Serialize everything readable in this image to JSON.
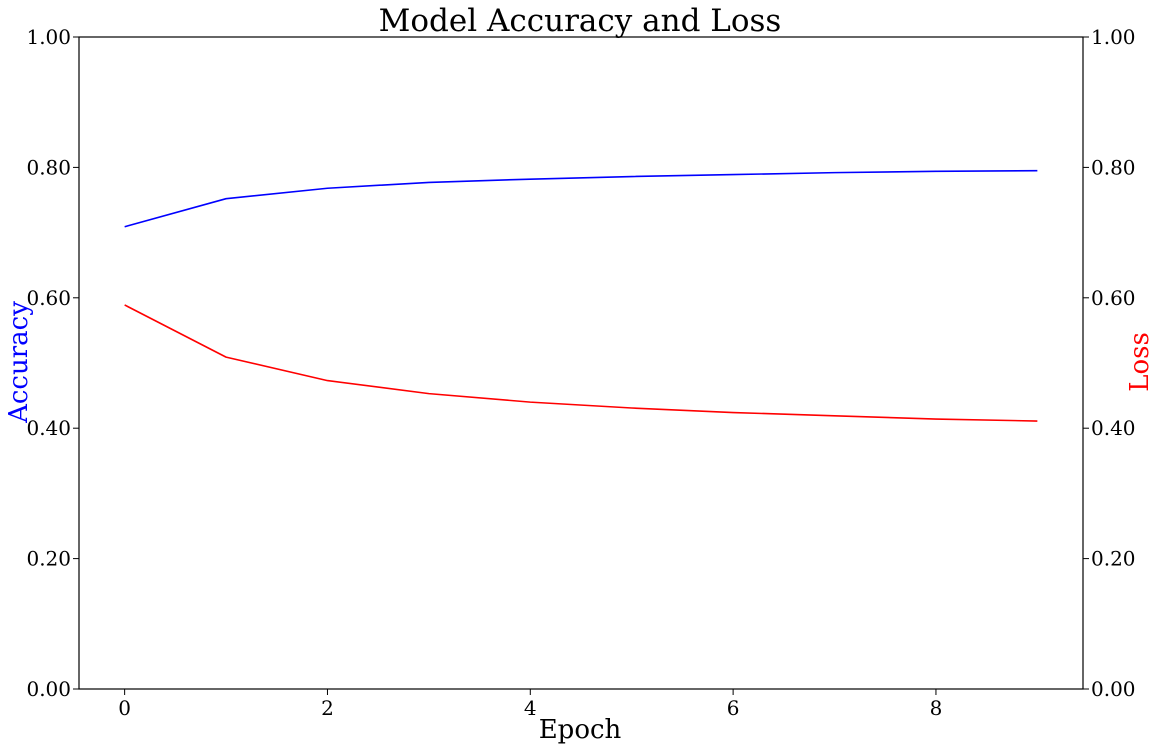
{
  "chart_data": {
    "type": "line",
    "title": "Model Accuracy and Loss",
    "xlabel": "Epoch",
    "ylabel_left": "Accuracy",
    "ylabel_right": "Loss",
    "x": [
      0,
      1,
      2,
      3,
      4,
      5,
      6,
      7,
      8,
      9
    ],
    "xlim": [
      -0.45,
      9.45
    ],
    "xticks": [
      0,
      2,
      4,
      6,
      8
    ],
    "ylim_left": [
      0,
      1
    ],
    "ylim_right": [
      0,
      1
    ],
    "yticks_left": [
      "0.00",
      "0.20",
      "0.40",
      "0.60",
      "0.80",
      "1.00"
    ],
    "yticks_right": [
      "0.00",
      "0.20",
      "0.40",
      "0.60",
      "0.80",
      "1.00"
    ],
    "grid": false,
    "series": [
      {
        "name": "Accuracy",
        "axis": "left",
        "color": "#0000ff",
        "values": [
          0.709,
          0.752,
          0.768,
          0.777,
          0.782,
          0.786,
          0.789,
          0.792,
          0.794,
          0.795
        ]
      },
      {
        "name": "Loss",
        "axis": "right",
        "color": "#ff0000",
        "values": [
          0.589,
          0.509,
          0.473,
          0.453,
          0.44,
          0.431,
          0.424,
          0.419,
          0.414,
          0.411
        ]
      }
    ]
  }
}
